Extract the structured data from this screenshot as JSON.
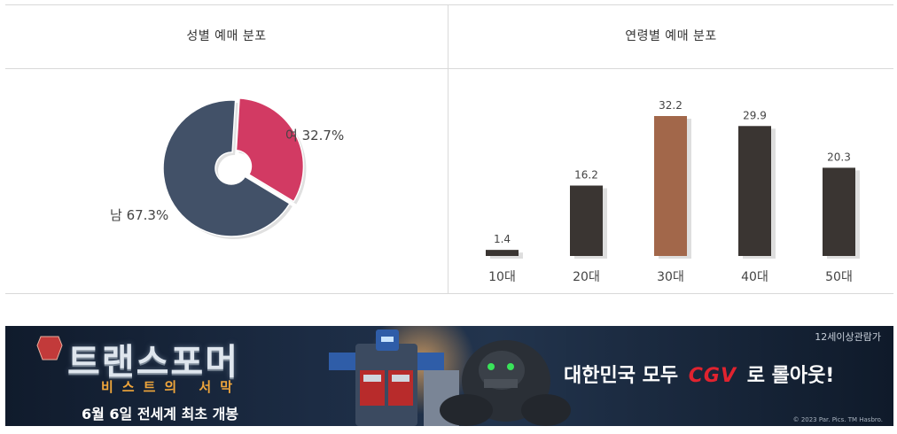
{
  "gender_panel": {
    "title": "성별 예매 분포"
  },
  "age_panel": {
    "title": "연령별 예매 분포"
  },
  "colors": {
    "male": "#425168",
    "female": "#d23a63",
    "bar_default": "#3a3532",
    "bar_highlight": "#a2674a"
  },
  "chart_data": [
    {
      "type": "pie",
      "title": "성별 예매 분포",
      "slices": [
        {
          "label": "여",
          "value": 32.7,
          "text": "여 32.7%"
        },
        {
          "label": "남",
          "value": 67.3,
          "text": "남 67.3%"
        }
      ]
    },
    {
      "type": "bar",
      "title": "연령별 예매 분포",
      "categories": [
        "10대",
        "20대",
        "30대",
        "40대",
        "50대"
      ],
      "values": [
        1.4,
        16.2,
        32.2,
        29.9,
        20.3
      ],
      "value_labels": [
        "1.4",
        "16.2",
        "32.2",
        "29.9",
        "20.3"
      ],
      "highlight_index": 2,
      "ylim": [
        0,
        32.2
      ],
      "grid": false
    }
  ],
  "banner": {
    "title": "트랜스포머",
    "subtitle": "비스트의 서막",
    "release": "6월 6일 전세계 최초 개봉",
    "slogan_pre": "대한민국 모두",
    "slogan_brand": "CGV",
    "slogan_post": "로 롤아웃!",
    "rating": "12세이상관람가",
    "copyright": "© 2023 Par. Pics. TM Hasbro."
  }
}
